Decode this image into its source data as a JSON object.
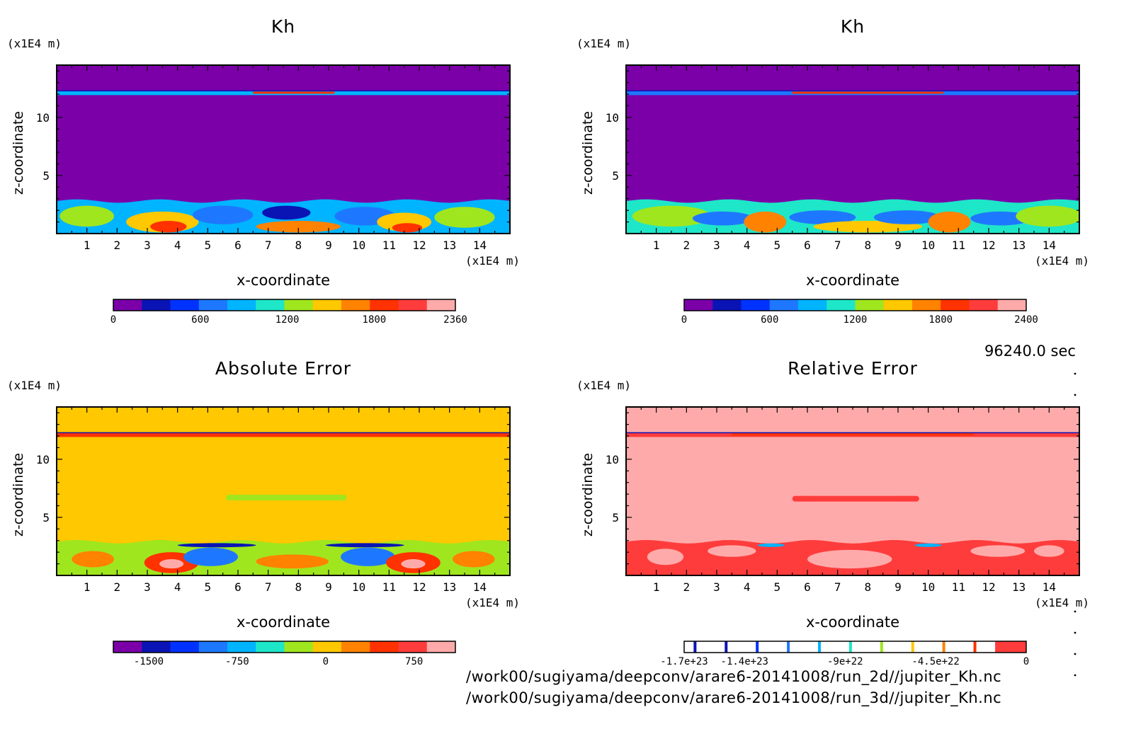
{
  "time_label": "96240.0 sec",
  "footer_paths": [
    "/work00/sugiyama/deepconv/arare6-20141008/run_2d//jupiter_Kh.nc",
    "/work00/sugiyama/deepconv/arare6-20141008/run_3d//jupiter_Kh.nc"
  ],
  "palette": {
    "violet": "#7b00a8",
    "navy": "#0a14b4",
    "blue": "#0032ff",
    "azure": "#1e78ff",
    "sky": "#00b4ff",
    "cyan": "#1ee6c8",
    "lime": "#a0e61e",
    "gold": "#ffc800",
    "orange": "#ff8200",
    "red": "#ff3200",
    "crimson": "#ff3c3c",
    "pink": "#ffaaaa",
    "white": "#ffffff"
  },
  "chart_data": [
    {
      "type": "heatmap",
      "title": "Kh",
      "xlabel": "x-coordinate",
      "ylabel": "z-coordinate",
      "x_unit": "(x1E4 m)",
      "y_unit": "(x1E4 m)",
      "xlim": [
        0,
        15
      ],
      "ylim": [
        0,
        14.5
      ],
      "x_ticks": [
        1,
        2,
        3,
        4,
        5,
        6,
        7,
        8,
        9,
        10,
        11,
        12,
        13,
        14
      ],
      "y_ticks": [
        5,
        10
      ],
      "field": {
        "background": "violet",
        "bottom_layer_top": 2.8,
        "bottom_layer_base": "sky",
        "top_band_z": 12.1,
        "top_band_color": "sky",
        "top_band_hot_x": [
          6.5,
          9.2
        ],
        "blobs": [
          {
            "x": 1.0,
            "z": 1.5,
            "rx": 0.9,
            "rz": 0.9,
            "c": "lime"
          },
          {
            "x": 3.5,
            "z": 1.0,
            "rx": 1.2,
            "rz": 0.9,
            "c": "gold"
          },
          {
            "x": 3.7,
            "z": 0.6,
            "rx": 0.6,
            "rz": 0.5,
            "c": "red"
          },
          {
            "x": 5.5,
            "z": 1.6,
            "rx": 1.0,
            "rz": 0.8,
            "c": "azure"
          },
          {
            "x": 7.6,
            "z": 1.8,
            "rx": 0.8,
            "rz": 0.6,
            "c": "navy"
          },
          {
            "x": 8.0,
            "z": 0.6,
            "rx": 1.4,
            "rz": 0.5,
            "c": "orange"
          },
          {
            "x": 10.2,
            "z": 1.5,
            "rx": 1.0,
            "rz": 0.8,
            "c": "azure"
          },
          {
            "x": 11.5,
            "z": 1.0,
            "rx": 0.9,
            "rz": 0.8,
            "c": "gold"
          },
          {
            "x": 11.6,
            "z": 0.5,
            "rx": 0.5,
            "rz": 0.4,
            "c": "red"
          },
          {
            "x": 13.5,
            "z": 1.4,
            "rx": 1.0,
            "rz": 0.9,
            "c": "lime"
          }
        ]
      },
      "colorbar": {
        "colors": [
          "violet",
          "navy",
          "blue",
          "azure",
          "sky",
          "cyan",
          "lime",
          "gold",
          "orange",
          "red",
          "crimson",
          "pink"
        ],
        "tick_labels": [
          "0",
          "600",
          "1200",
          "1800",
          "2360"
        ],
        "tick_values": [
          0,
          600,
          1200,
          1800,
          2360
        ],
        "vmin": 0,
        "vmax": 2360
      }
    },
    {
      "type": "heatmap",
      "title": "Kh",
      "xlabel": "x-coordinate",
      "ylabel": "z-coordinate",
      "x_unit": "(x1E4 m)",
      "y_unit": "(x1E4 m)",
      "xlim": [
        0,
        15
      ],
      "ylim": [
        0,
        14.5
      ],
      "x_ticks": [
        1,
        2,
        3,
        4,
        5,
        6,
        7,
        8,
        9,
        10,
        11,
        12,
        13,
        14
      ],
      "y_ticks": [
        5,
        10
      ],
      "field": {
        "background": "violet",
        "bottom_layer_top": 2.8,
        "bottom_layer_base": "cyan",
        "top_band_z": 12.1,
        "top_band_color": "azure",
        "top_band_hot_x": [
          5.5,
          10.5
        ],
        "blobs": [
          {
            "x": 1.5,
            "z": 1.5,
            "rx": 1.3,
            "rz": 0.9,
            "c": "lime"
          },
          {
            "x": 3.2,
            "z": 1.3,
            "rx": 1.0,
            "rz": 0.6,
            "c": "azure"
          },
          {
            "x": 4.6,
            "z": 1.0,
            "rx": 0.7,
            "rz": 0.9,
            "c": "orange"
          },
          {
            "x": 6.5,
            "z": 1.4,
            "rx": 1.1,
            "rz": 0.6,
            "c": "azure"
          },
          {
            "x": 8.0,
            "z": 0.6,
            "rx": 1.8,
            "rz": 0.5,
            "c": "gold"
          },
          {
            "x": 9.3,
            "z": 1.4,
            "rx": 1.1,
            "rz": 0.6,
            "c": "azure"
          },
          {
            "x": 10.7,
            "z": 1.0,
            "rx": 0.7,
            "rz": 0.9,
            "c": "orange"
          },
          {
            "x": 12.4,
            "z": 1.3,
            "rx": 1.0,
            "rz": 0.6,
            "c": "azure"
          },
          {
            "x": 14.0,
            "z": 1.5,
            "rx": 1.1,
            "rz": 0.9,
            "c": "lime"
          }
        ]
      },
      "colorbar": {
        "colors": [
          "violet",
          "navy",
          "blue",
          "azure",
          "sky",
          "cyan",
          "lime",
          "gold",
          "orange",
          "red",
          "crimson",
          "pink"
        ],
        "tick_labels": [
          "0",
          "600",
          "1200",
          "1800",
          "2400"
        ],
        "tick_values": [
          0,
          600,
          1200,
          1800,
          2400
        ],
        "vmin": 0,
        "vmax": 2400
      }
    },
    {
      "type": "heatmap",
      "title": "Absolute Error",
      "xlabel": "x-coordinate",
      "ylabel": "z-coordinate",
      "x_unit": "(x1E4 m)",
      "y_unit": "(x1E4 m)",
      "xlim": [
        0,
        15
      ],
      "ylim": [
        0,
        14.5
      ],
      "x_ticks": [
        1,
        2,
        3,
        4,
        5,
        6,
        7,
        8,
        9,
        10,
        11,
        12,
        13,
        14
      ],
      "y_ticks": [
        5,
        10
      ],
      "field": {
        "background": "gold",
        "bottom_layer_top": 2.9,
        "bottom_layer_base": "lime",
        "top_band_z": 12.1,
        "top_band_color": "red",
        "top_band_hot_x": [
          3.5,
          10.5
        ],
        "mid_band": {
          "x": [
            5.6,
            9.6
          ],
          "z": 6.7,
          "c": "lime"
        },
        "blobs": [
          {
            "x": 1.2,
            "z": 1.4,
            "rx": 0.7,
            "rz": 0.7,
            "c": "orange"
          },
          {
            "x": 3.8,
            "z": 1.1,
            "rx": 0.9,
            "rz": 0.9,
            "c": "red"
          },
          {
            "x": 3.8,
            "z": 1.0,
            "rx": 0.4,
            "rz": 0.4,
            "c": "pink"
          },
          {
            "x": 5.1,
            "z": 1.6,
            "rx": 0.9,
            "rz": 0.8,
            "c": "azure"
          },
          {
            "x": 5.3,
            "z": 2.6,
            "rx": 1.3,
            "rz": 0.18,
            "c": "navy"
          },
          {
            "x": 7.8,
            "z": 1.2,
            "rx": 1.2,
            "rz": 0.6,
            "c": "orange"
          },
          {
            "x": 10.3,
            "z": 1.6,
            "rx": 0.9,
            "rz": 0.8,
            "c": "azure"
          },
          {
            "x": 10.2,
            "z": 2.6,
            "rx": 1.3,
            "rz": 0.18,
            "c": "navy"
          },
          {
            "x": 11.8,
            "z": 1.1,
            "rx": 0.9,
            "rz": 0.9,
            "c": "red"
          },
          {
            "x": 11.8,
            "z": 1.0,
            "rx": 0.4,
            "rz": 0.4,
            "c": "pink"
          },
          {
            "x": 13.8,
            "z": 1.4,
            "rx": 0.7,
            "rz": 0.7,
            "c": "orange"
          }
        ]
      },
      "colorbar": {
        "colors": [
          "violet",
          "navy",
          "blue",
          "azure",
          "sky",
          "cyan",
          "lime",
          "gold",
          "orange",
          "red",
          "crimson",
          "pink"
        ],
        "tick_labels": [
          "-1500",
          "-750",
          "0",
          "750"
        ],
        "tick_values": [
          -1500,
          -750,
          0,
          750
        ],
        "vmin": -1800,
        "vmax": 1100
      }
    },
    {
      "type": "heatmap",
      "title": "Relative Error",
      "xlabel": "x-coordinate",
      "ylabel": "z-coordinate",
      "x_unit": "(x1E4 m)",
      "y_unit": "(x1E4 m)",
      "xlim": [
        0,
        15
      ],
      "ylim": [
        0,
        14.5
      ],
      "x_ticks": [
        1,
        2,
        3,
        4,
        5,
        6,
        7,
        8,
        9,
        10,
        11,
        12,
        13,
        14
      ],
      "y_ticks": [
        5,
        10
      ],
      "field": {
        "background": "pink",
        "bottom_layer_top": 2.9,
        "bottom_layer_base": "crimson",
        "top_band_z": 12.1,
        "top_band_color": "crimson",
        "top_band_hot_x": [
          3.5,
          11.5
        ],
        "mid_band": {
          "x": [
            5.5,
            9.7
          ],
          "z": 6.6,
          "c": "crimson"
        },
        "blobs": [
          {
            "x": 1.3,
            "z": 1.6,
            "rx": 0.6,
            "rz": 0.7,
            "c": "pink"
          },
          {
            "x": 3.5,
            "z": 2.1,
            "rx": 0.8,
            "rz": 0.5,
            "c": "pink"
          },
          {
            "x": 7.4,
            "z": 1.4,
            "rx": 1.4,
            "rz": 0.8,
            "c": "pink"
          },
          {
            "x": 12.3,
            "z": 2.1,
            "rx": 0.9,
            "rz": 0.5,
            "c": "pink"
          },
          {
            "x": 14.0,
            "z": 2.1,
            "rx": 0.5,
            "rz": 0.5,
            "c": "pink"
          },
          {
            "x": 4.8,
            "z": 2.6,
            "rx": 0.45,
            "rz": 0.15,
            "c": "sky"
          },
          {
            "x": 10.0,
            "z": 2.6,
            "rx": 0.45,
            "rz": 0.15,
            "c": "sky"
          }
        ]
      },
      "colorbar": {
        "colors": [
          "white",
          "white",
          "white",
          "white",
          "white",
          "white",
          "white",
          "white",
          "white",
          "white",
          "crimson"
        ],
        "contour_lines": [
          "navy",
          "navy",
          "blue",
          "azure",
          "sky",
          "cyan",
          "lime",
          "gold",
          "orange",
          "red"
        ],
        "tick_labels": [
          "-1.7e+23",
          "-1.4e+23",
          "-9e+22",
          "-4.5e+22",
          "0"
        ],
        "tick_values": [
          -1.7e+23,
          -1.4e+23,
          -9e+22,
          -4.5e+22,
          0
        ],
        "vmin": -1.7e+23,
        "vmax": 0
      }
    }
  ]
}
